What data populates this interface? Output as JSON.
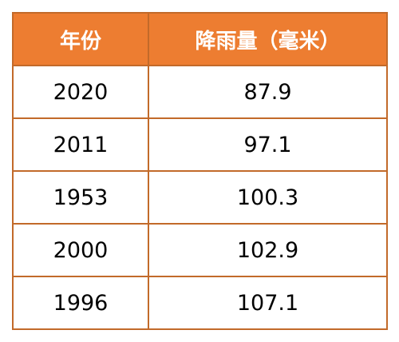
{
  "table": {
    "headers": [
      "年份",
      "降雨量（毫米）"
    ],
    "rows": [
      {
        "year": "2020",
        "rainfall": "87.9"
      },
      {
        "year": "2011",
        "rainfall": "97.1"
      },
      {
        "year": "1953",
        "rainfall": "100.3"
      },
      {
        "year": "2000",
        "rainfall": "102.9"
      },
      {
        "year": "1996",
        "rainfall": "107.1"
      }
    ]
  },
  "colors": {
    "header_bg": "#ED7D31",
    "header_text": "#FFFFFF",
    "border": "#C26A2A",
    "cell_bg": "#FFFFFF"
  }
}
